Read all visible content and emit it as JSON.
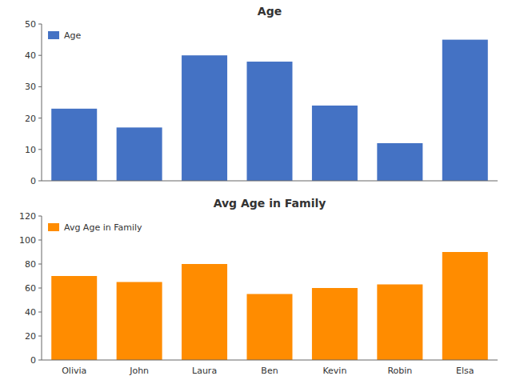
{
  "chart_data": [
    {
      "type": "bar",
      "title": "Age",
      "categories": [
        null,
        null,
        null,
        null,
        null,
        null,
        null
      ],
      "series": [
        {
          "name": "Age",
          "color": "#4472C4",
          "values": [
            23,
            17,
            40,
            38,
            24,
            12,
            45
          ]
        }
      ],
      "ylim": [
        0,
        50
      ],
      "yticks": [
        0,
        10,
        20,
        30,
        40,
        50
      ],
      "legend": "upper left",
      "grid": false
    },
    {
      "type": "bar",
      "title": "Avg Age in Family",
      "categories": [
        "Olivia",
        "John",
        "Laura",
        "Ben",
        "Kevin",
        "Robin",
        "Elsa"
      ],
      "series": [
        {
          "name": "Avg Age in Family",
          "color": "#FF8C00",
          "values": [
            70,
            65,
            80,
            55,
            60,
            63,
            90
          ]
        }
      ],
      "ylim": [
        0,
        120
      ],
      "yticks": [
        0,
        20,
        40,
        60,
        80,
        100,
        120
      ],
      "legend": "upper left",
      "grid": false
    }
  ]
}
